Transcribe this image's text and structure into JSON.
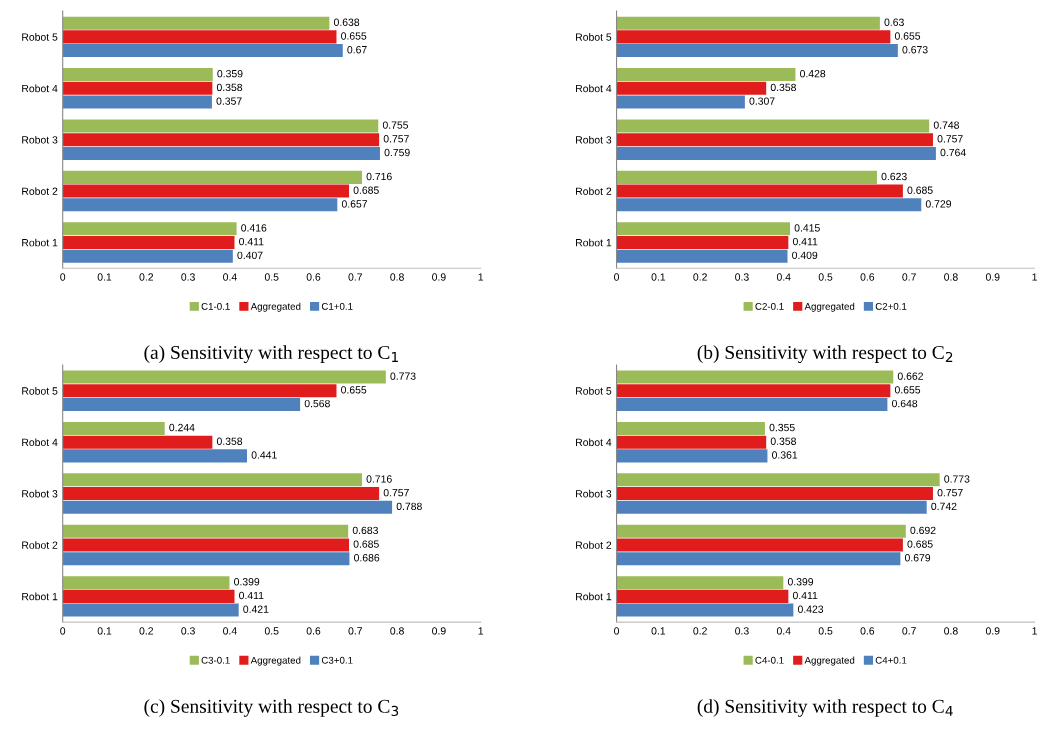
{
  "chart_data": [
    {
      "type": "bar",
      "orientation": "horizontal",
      "title": "(a) Sensitivity with respect to C$_{1}$",
      "categories": [
        "Robot 5",
        "Robot 4",
        "Robot 3",
        "Robot 2",
        "Robot 1"
      ],
      "series": [
        {
          "name": "C1-0.1",
          "color": "#9bbb59",
          "values": [
            0.638,
            0.359,
            0.755,
            0.716,
            0.416
          ]
        },
        {
          "name": "Aggregated",
          "color": "#e01c1c",
          "values": [
            0.655,
            0.358,
            0.757,
            0.685,
            0.411
          ]
        },
        {
          "name": "C1+0.1",
          "color": "#4f81bd",
          "values": [
            0.67,
            0.357,
            0.759,
            0.657,
            0.407
          ]
        }
      ],
      "xlim": [
        0,
        1
      ],
      "xticks": [
        0,
        0.1,
        0.2,
        0.3,
        0.4,
        0.5,
        0.6,
        0.7,
        0.8,
        0.9,
        1
      ],
      "data_labels": true,
      "legend": "bottom",
      "grid": false
    },
    {
      "type": "bar",
      "orientation": "horizontal",
      "title": "(b) Sensitivity with respect to C$_{2}$",
      "categories": [
        "Robot 5",
        "Robot 4",
        "Robot 3",
        "Robot 2",
        "Robot 1"
      ],
      "series": [
        {
          "name": "C2-0.1",
          "color": "#9bbb59",
          "values": [
            0.63,
            0.428,
            0.748,
            0.623,
            0.415
          ]
        },
        {
          "name": "Aggregated",
          "color": "#e01c1c",
          "values": [
            0.655,
            0.358,
            0.757,
            0.685,
            0.411
          ]
        },
        {
          "name": "C2+0.1",
          "color": "#4f81bd",
          "values": [
            0.673,
            0.307,
            0.764,
            0.729,
            0.409
          ]
        }
      ],
      "xlim": [
        0,
        1
      ],
      "xticks": [
        0,
        0.1,
        0.2,
        0.3,
        0.4,
        0.5,
        0.6,
        0.7,
        0.8,
        0.9,
        1
      ],
      "data_labels": true,
      "legend": "bottom",
      "grid": false
    },
    {
      "type": "bar",
      "orientation": "horizontal",
      "title": "(c) Sensitivity with respect to C$_{3}$",
      "categories": [
        "Robot 5",
        "Robot 4",
        "Robot 3",
        "Robot 2",
        "Robot 1"
      ],
      "series": [
        {
          "name": "C3-0.1",
          "color": "#9bbb59",
          "values": [
            0.773,
            0.244,
            0.716,
            0.683,
            0.399
          ]
        },
        {
          "name": "Aggregated",
          "color": "#e01c1c",
          "values": [
            0.655,
            0.358,
            0.757,
            0.685,
            0.411
          ]
        },
        {
          "name": "C3+0.1",
          "color": "#4f81bd",
          "values": [
            0.568,
            0.441,
            0.788,
            0.686,
            0.421
          ]
        }
      ],
      "xlim": [
        0,
        1
      ],
      "xticks": [
        0,
        0.1,
        0.2,
        0.3,
        0.4,
        0.5,
        0.6,
        0.7,
        0.8,
        0.9,
        1
      ],
      "data_labels": true,
      "legend": "bottom",
      "grid": false
    },
    {
      "type": "bar",
      "orientation": "horizontal",
      "title": "(d) Sensitivity with respect to C$_{4}$",
      "categories": [
        "Robot 5",
        "Robot 4",
        "Robot 3",
        "Robot 2",
        "Robot 1"
      ],
      "series": [
        {
          "name": "C4-0.1",
          "color": "#9bbb59",
          "values": [
            0.662,
            0.355,
            0.773,
            0.692,
            0.399
          ]
        },
        {
          "name": "Aggregated",
          "color": "#e01c1c",
          "values": [
            0.655,
            0.358,
            0.757,
            0.685,
            0.411
          ]
        },
        {
          "name": "C4+0.1",
          "color": "#4f81bd",
          "values": [
            0.648,
            0.361,
            0.742,
            0.679,
            0.423
          ]
        }
      ],
      "xlim": [
        0,
        1
      ],
      "xticks": [
        0,
        0.1,
        0.2,
        0.3,
        0.4,
        0.5,
        0.6,
        0.7,
        0.8,
        0.9,
        1
      ],
      "data_labels": true,
      "legend": "bottom",
      "grid": false
    }
  ]
}
